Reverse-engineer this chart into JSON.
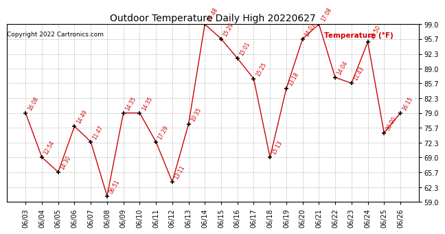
{
  "title": "Outdoor Temperature Daily High 20220627",
  "ylabel": "Temperature (°F)",
  "copyright": "Copyright 2022 Cartronics.com",
  "background_color": "#ffffff",
  "line_color": "#cc0000",
  "marker_color": "#000000",
  "text_color": "#cc0000",
  "ylim": [
    59.0,
    99.0
  ],
  "yticks": [
    59.0,
    62.3,
    65.7,
    69.0,
    72.3,
    75.7,
    79.0,
    82.3,
    85.7,
    89.0,
    92.3,
    95.7,
    99.0
  ],
  "dates": [
    "06/03",
    "06/04",
    "06/05",
    "06/06",
    "06/07",
    "06/08",
    "06/09",
    "06/10",
    "06/11",
    "06/12",
    "06/13",
    "06/14",
    "06/15",
    "06/16",
    "06/17",
    "06/18",
    "06/19",
    "06/20",
    "06/21",
    "06/22",
    "06/23",
    "06/24",
    "06/25",
    "06/26"
  ],
  "temps": [
    79.0,
    69.0,
    65.7,
    76.0,
    72.5,
    60.3,
    79.0,
    79.0,
    72.5,
    63.5,
    76.5,
    99.0,
    95.7,
    91.3,
    86.7,
    69.0,
    84.5,
    95.7,
    99.0,
    87.0,
    85.7,
    95.0,
    74.5,
    79.0
  ],
  "times": [
    "16:08",
    "12:54",
    "14:30",
    "14:49",
    "11:47",
    "06:51",
    "14:35",
    "14:35",
    "17:29",
    "13:11",
    "10:35",
    "15:48",
    "15:29",
    "15:01",
    "15:25",
    "15:13",
    "13:18",
    "14:01",
    "17:08",
    "14:04",
    "11:43",
    "13:50",
    "00:00",
    "16:15"
  ]
}
